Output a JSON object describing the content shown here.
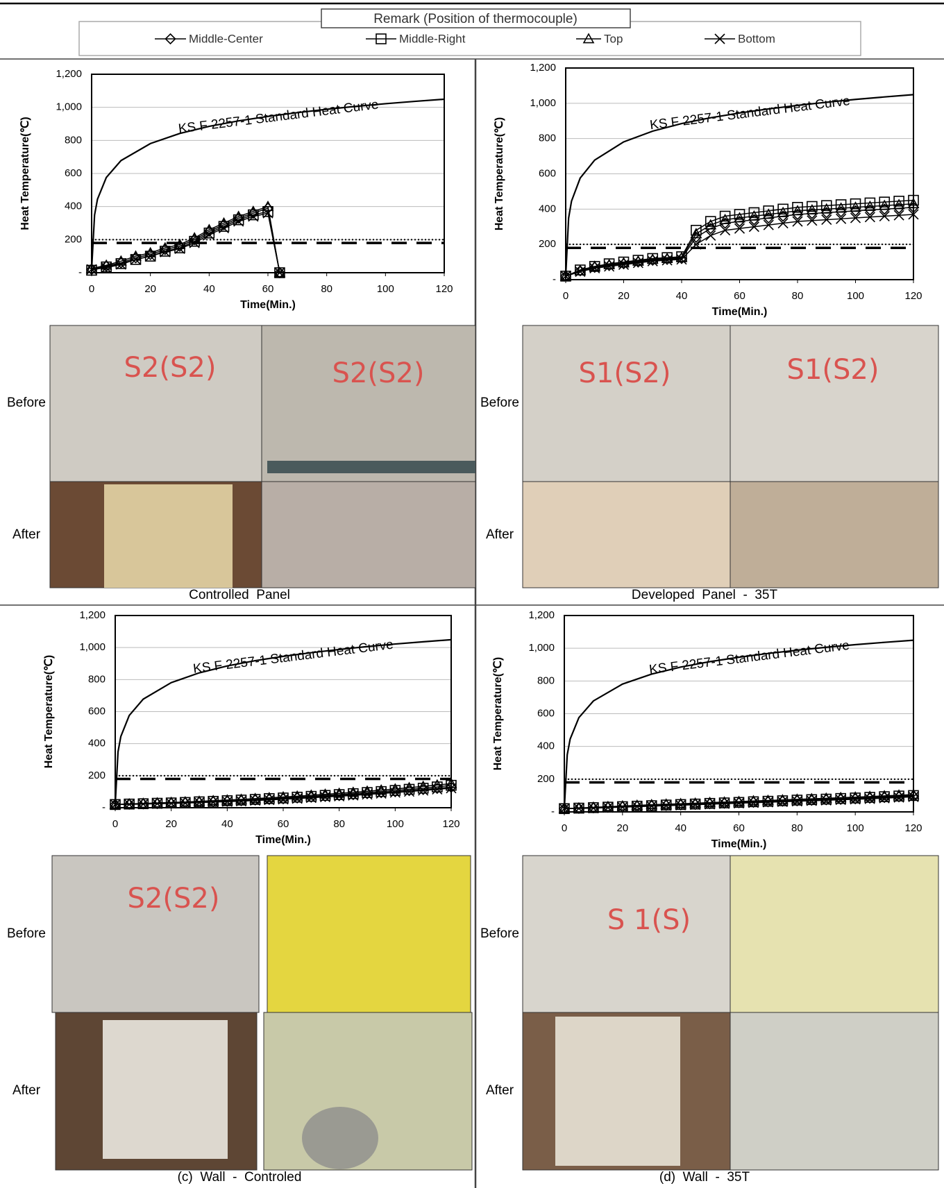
{
  "legend_title": "Remark (Position of thermocouple)",
  "chart_data": [
    {
      "type": "line",
      "ylabel": "Heat Temperature(℃)",
      "xlabel": "Time(Min.)",
      "xlim": [
        0,
        120
      ],
      "xticks": [
        0,
        20,
        40,
        60,
        80,
        100,
        120
      ],
      "ylim": [
        0,
        1200
      ],
      "yticks": [
        {
          "value": 0,
          "label": "-"
        },
        200,
        400,
        600,
        800,
        {
          "value": 1000,
          "label": "1,000"
        },
        {
          "value": 1200,
          "label": "1,200"
        }
      ],
      "grid": true,
      "standard_curve": {
        "label": "KS F 2257-1 Standard Heat Curve",
        "x": [
          0,
          1,
          2,
          5,
          10,
          20,
          30,
          40,
          50,
          60,
          70,
          80,
          90,
          100,
          110,
          120
        ],
        "values": [
          20,
          349,
          445,
          576,
          678,
          781,
          842,
          885,
          918,
          945,
          968,
          988,
          1006,
          1022,
          1036,
          1049
        ]
      },
      "reference_lines": [
        {
          "value": 200,
          "style": "dotted"
        },
        {
          "value": 180,
          "style": "dashed"
        }
      ],
      "x": [
        0,
        5,
        10,
        15,
        20,
        25,
        30,
        35,
        40,
        45,
        50,
        55,
        60,
        64
      ],
      "series": [
        {
          "name": "Middle-Center",
          "marker": "diamond",
          "color": "#000000",
          "values": [
            20,
            40,
            60,
            90,
            110,
            140,
            160,
            200,
            250,
            290,
            330,
            360,
            390,
            0
          ]
        },
        {
          "name": "Middle-Right",
          "marker": "square",
          "color": "#000000",
          "values": [
            15,
            35,
            55,
            80,
            100,
            130,
            150,
            190,
            240,
            280,
            320,
            350,
            370,
            0
          ]
        },
        {
          "name": "Top",
          "marker": "triangle",
          "color": "#000000",
          "values": [
            25,
            45,
            70,
            100,
            120,
            150,
            170,
            210,
            260,
            300,
            340,
            370,
            400,
            0
          ]
        },
        {
          "name": "Bottom",
          "marker": "x",
          "color": "#000000",
          "values": [
            20,
            30,
            50,
            80,
            100,
            125,
            145,
            180,
            230,
            270,
            310,
            340,
            360,
            0
          ]
        }
      ]
    },
    {
      "type": "line",
      "ylabel": "Heat Temperature(℃)",
      "xlabel": "Time(Min.)",
      "xlim": [
        0,
        120
      ],
      "xticks": [
        0,
        20,
        40,
        60,
        80,
        100,
        120
      ],
      "ylim": [
        0,
        1200
      ],
      "yticks": [
        {
          "value": 0,
          "label": "-"
        },
        200,
        400,
        600,
        800,
        {
          "value": 1000,
          "label": "1,000"
        },
        {
          "value": 1200,
          "label": "1,200"
        }
      ],
      "grid": true,
      "standard_curve": {
        "label": "KS F 2257-1 Standard Heat Curve",
        "x": [
          0,
          1,
          2,
          5,
          10,
          20,
          30,
          40,
          50,
          60,
          70,
          80,
          90,
          100,
          110,
          120
        ],
        "values": [
          20,
          349,
          445,
          576,
          678,
          781,
          842,
          885,
          918,
          945,
          968,
          988,
          1006,
          1022,
          1036,
          1049
        ]
      },
      "reference_lines": [
        {
          "value": 200,
          "style": "dotted"
        },
        {
          "value": 180,
          "style": "dashed"
        }
      ],
      "x": [
        0,
        5,
        10,
        15,
        20,
        25,
        30,
        35,
        40,
        45,
        50,
        55,
        60,
        65,
        70,
        75,
        80,
        85,
        90,
        95,
        100,
        105,
        110,
        115,
        120
      ],
      "series": [
        {
          "name": "Middle-Center",
          "marker": "diamond",
          "color": "#000000",
          "values": [
            20,
            50,
            70,
            80,
            90,
            100,
            110,
            115,
            120,
            240,
            290,
            320,
            330,
            340,
            350,
            360,
            370,
            375,
            380,
            385,
            390,
            395,
            400,
            405,
            410
          ]
        },
        {
          "name": "Middle-Right",
          "marker": "square",
          "color": "#000000",
          "values": [
            20,
            55,
            75,
            90,
            100,
            110,
            120,
            125,
            130,
            280,
            330,
            360,
            370,
            380,
            390,
            400,
            410,
            415,
            420,
            425,
            430,
            435,
            440,
            445,
            450
          ]
        },
        {
          "name": "Top",
          "marker": "triangle",
          "color": "#000000",
          "values": [
            20,
            50,
            75,
            85,
            95,
            105,
            115,
            120,
            125,
            260,
            310,
            340,
            350,
            360,
            370,
            380,
            390,
            395,
            400,
            405,
            410,
            415,
            420,
            425,
            430
          ]
        },
        {
          "name": "Bottom",
          "marker": "x",
          "color": "#000000",
          "values": [
            20,
            45,
            65,
            75,
            85,
            95,
            105,
            110,
            115,
            200,
            250,
            280,
            290,
            300,
            310,
            320,
            330,
            335,
            340,
            345,
            350,
            355,
            360,
            365,
            370
          ]
        }
      ]
    },
    {
      "type": "line",
      "ylabel": "Heat Temperature(℃)",
      "xlabel": "Time(Min.)",
      "xlim": [
        0,
        120
      ],
      "xticks": [
        0,
        20,
        40,
        60,
        80,
        100,
        120
      ],
      "ylim": [
        0,
        1200
      ],
      "yticks": [
        {
          "value": 0,
          "label": "-"
        },
        200,
        400,
        600,
        800,
        {
          "value": 1000,
          "label": "1,000"
        },
        {
          "value": 1200,
          "label": "1,200"
        }
      ],
      "grid": true,
      "standard_curve": {
        "label": "KS F 2257-1 Standard Heat Curve",
        "x": [
          0,
          1,
          2,
          5,
          10,
          20,
          30,
          40,
          50,
          60,
          70,
          80,
          90,
          100,
          110,
          120
        ],
        "values": [
          20,
          349,
          445,
          576,
          678,
          781,
          842,
          885,
          918,
          945,
          968,
          988,
          1006,
          1022,
          1036,
          1049
        ]
      },
      "reference_lines": [
        {
          "value": 200,
          "style": "dotted"
        },
        {
          "value": 180,
          "style": "dashed"
        }
      ],
      "x": [
        0,
        5,
        10,
        15,
        20,
        25,
        30,
        35,
        40,
        45,
        50,
        55,
        60,
        65,
        70,
        75,
        80,
        85,
        90,
        95,
        100,
        105,
        110,
        115,
        120
      ],
      "series": [
        {
          "name": "Middle-Center",
          "marker": "diamond",
          "color": "#000000",
          "values": [
            20,
            22,
            24,
            26,
            28,
            31,
            34,
            37,
            40,
            44,
            48,
            52,
            56,
            61,
            66,
            71,
            76,
            82,
            88,
            94,
            100,
            107,
            114,
            121,
            128
          ]
        },
        {
          "name": "Middle-Right",
          "marker": "square",
          "color": "#000000",
          "values": [
            20,
            23,
            25,
            28,
            30,
            33,
            37,
            40,
            44,
            48,
            52,
            57,
            61,
            66,
            71,
            77,
            82,
            88,
            95,
            101,
            108,
            115,
            122,
            130,
            140
          ]
        },
        {
          "name": "Top",
          "marker": "triangle",
          "color": "#000000",
          "values": [
            20,
            24,
            27,
            30,
            33,
            36,
            40,
            44,
            48,
            52,
            57,
            62,
            67,
            72,
            78,
            84,
            90,
            96,
            103,
            110,
            117,
            125,
            133,
            142,
            150
          ]
        },
        {
          "name": "Bottom",
          "marker": "x",
          "color": "#000000",
          "values": [
            20,
            21,
            23,
            25,
            27,
            29,
            32,
            35,
            38,
            41,
            45,
            49,
            53,
            57,
            62,
            67,
            72,
            77,
            83,
            89,
            95,
            101,
            108,
            115,
            122
          ]
        }
      ]
    },
    {
      "type": "line",
      "ylabel": "Heat Temperature(℃)",
      "xlabel": "Time(Min.)",
      "xlim": [
        0,
        120
      ],
      "xticks": [
        0,
        20,
        40,
        60,
        80,
        100,
        120
      ],
      "ylim": [
        0,
        1200
      ],
      "yticks": [
        {
          "value": 0,
          "label": "-"
        },
        200,
        400,
        600,
        800,
        {
          "value": 1000,
          "label": "1,000"
        },
        {
          "value": 1200,
          "label": "1,200"
        }
      ],
      "grid": true,
      "standard_curve": {
        "label": "KS F 2257-1 Standard Heat Curve",
        "x": [
          0,
          1,
          2,
          5,
          10,
          20,
          30,
          40,
          50,
          60,
          70,
          80,
          90,
          100,
          110,
          120
        ],
        "values": [
          20,
          349,
          445,
          576,
          678,
          781,
          842,
          885,
          918,
          945,
          968,
          988,
          1006,
          1022,
          1036,
          1049
        ]
      },
      "reference_lines": [
        {
          "value": 200,
          "style": "dotted"
        },
        {
          "value": 180,
          "style": "dashed"
        }
      ],
      "x": [
        0,
        5,
        10,
        15,
        20,
        25,
        30,
        35,
        40,
        45,
        50,
        55,
        60,
        65,
        70,
        75,
        80,
        85,
        90,
        95,
        100,
        105,
        110,
        115,
        120
      ],
      "series": [
        {
          "name": "Middle-Center",
          "marker": "diamond",
          "color": "#000000",
          "values": [
            20,
            22,
            25,
            28,
            31,
            34,
            37,
            40,
            43,
            46,
            50,
            53,
            56,
            59,
            62,
            65,
            68,
            71,
            74,
            77,
            80,
            84,
            88,
            92,
            96
          ]
        },
        {
          "name": "Middle-Right",
          "marker": "square",
          "color": "#000000",
          "values": [
            20,
            23,
            26,
            29,
            32,
            35,
            38,
            42,
            45,
            48,
            52,
            55,
            58,
            62,
            65,
            68,
            72,
            75,
            78,
            82,
            85,
            89,
            93,
            97,
            100
          ]
        },
        {
          "name": "Top",
          "marker": "triangle",
          "color": "#000000",
          "values": [
            20,
            24,
            28,
            32,
            36,
            40,
            44,
            47,
            50,
            53,
            57,
            60,
            63,
            67,
            70,
            73,
            77,
            80,
            83,
            87,
            90,
            94,
            98,
            102,
            106
          ]
        },
        {
          "name": "Bottom",
          "marker": "x",
          "color": "#000000",
          "values": [
            20,
            21,
            23,
            26,
            29,
            32,
            35,
            38,
            41,
            44,
            47,
            50,
            53,
            56,
            59,
            62,
            65,
            68,
            71,
            74,
            77,
            80,
            84,
            88,
            92
          ]
        }
      ]
    }
  ],
  "panels": [
    {
      "caption": "Controlled  Panel",
      "rows": [
        {
          "label": "Before",
          "markings": [
            "S2(S2)",
            "S2(S2)"
          ]
        },
        {
          "label": "After"
        }
      ]
    },
    {
      "caption": "Developed  Panel  -  35T",
      "rows": [
        {
          "label": "Before",
          "markings": [
            "S1(S2)",
            "S1(S2)"
          ]
        },
        {
          "label": "After"
        }
      ]
    },
    {
      "caption": "(c)  Wall  -  Controled",
      "rows": [
        {
          "label": "Before",
          "markings": [
            "S2(S2)"
          ]
        },
        {
          "label": "After"
        }
      ]
    },
    {
      "caption": "(d)  Wall  -  35T",
      "rows": [
        {
          "label": "Before",
          "markings": [
            "S 1(S)"
          ]
        },
        {
          "label": "After"
        }
      ]
    }
  ]
}
